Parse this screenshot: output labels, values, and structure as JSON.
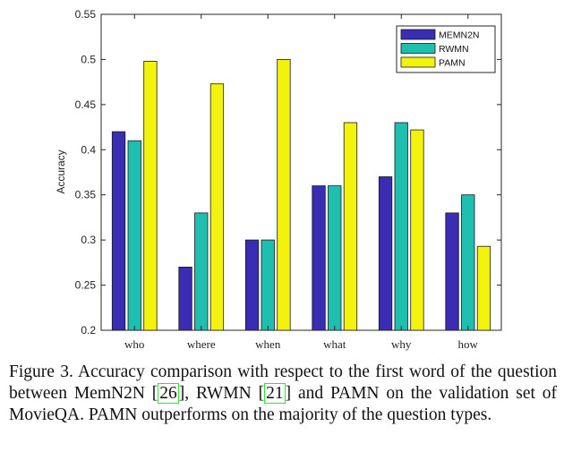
{
  "chart_data": {
    "type": "bar",
    "categories": [
      "who",
      "where",
      "when",
      "what",
      "why",
      "how"
    ],
    "series": [
      {
        "name": "MEMN2N",
        "color": "#3a2cb3",
        "values": [
          0.42,
          0.27,
          0.3,
          0.36,
          0.37,
          0.33
        ]
      },
      {
        "name": "RWMN",
        "color": "#1fbfaf",
        "values": [
          0.41,
          0.33,
          0.3,
          0.36,
          0.43,
          0.35
        ]
      },
      {
        "name": "PAMN",
        "color": "#f2f20c",
        "values": [
          0.498,
          0.473,
          0.5,
          0.43,
          0.422,
          0.293
        ]
      }
    ],
    "ylabel": "Accuracy",
    "ylim": [
      0.2,
      0.55
    ],
    "yticks": [
      0.2,
      0.25,
      0.3,
      0.35,
      0.4,
      0.45,
      0.5,
      0.55
    ],
    "ytick_labels": [
      "0.2",
      "0.25",
      "0.3",
      "0.35",
      "0.4",
      "0.45",
      "0.5",
      "0.55"
    ],
    "legend_position": "top-right",
    "grid": false
  },
  "caption": {
    "p1": "Figure 3. Accuracy comparison with respect to the first word of the question between MemN2N [",
    "ref1": "26",
    "p2": "], RWMN [",
    "ref2": "21",
    "p3": "] and PAMN on the validation set of MovieQA. PAMN outperforms on the majority of the question types."
  }
}
